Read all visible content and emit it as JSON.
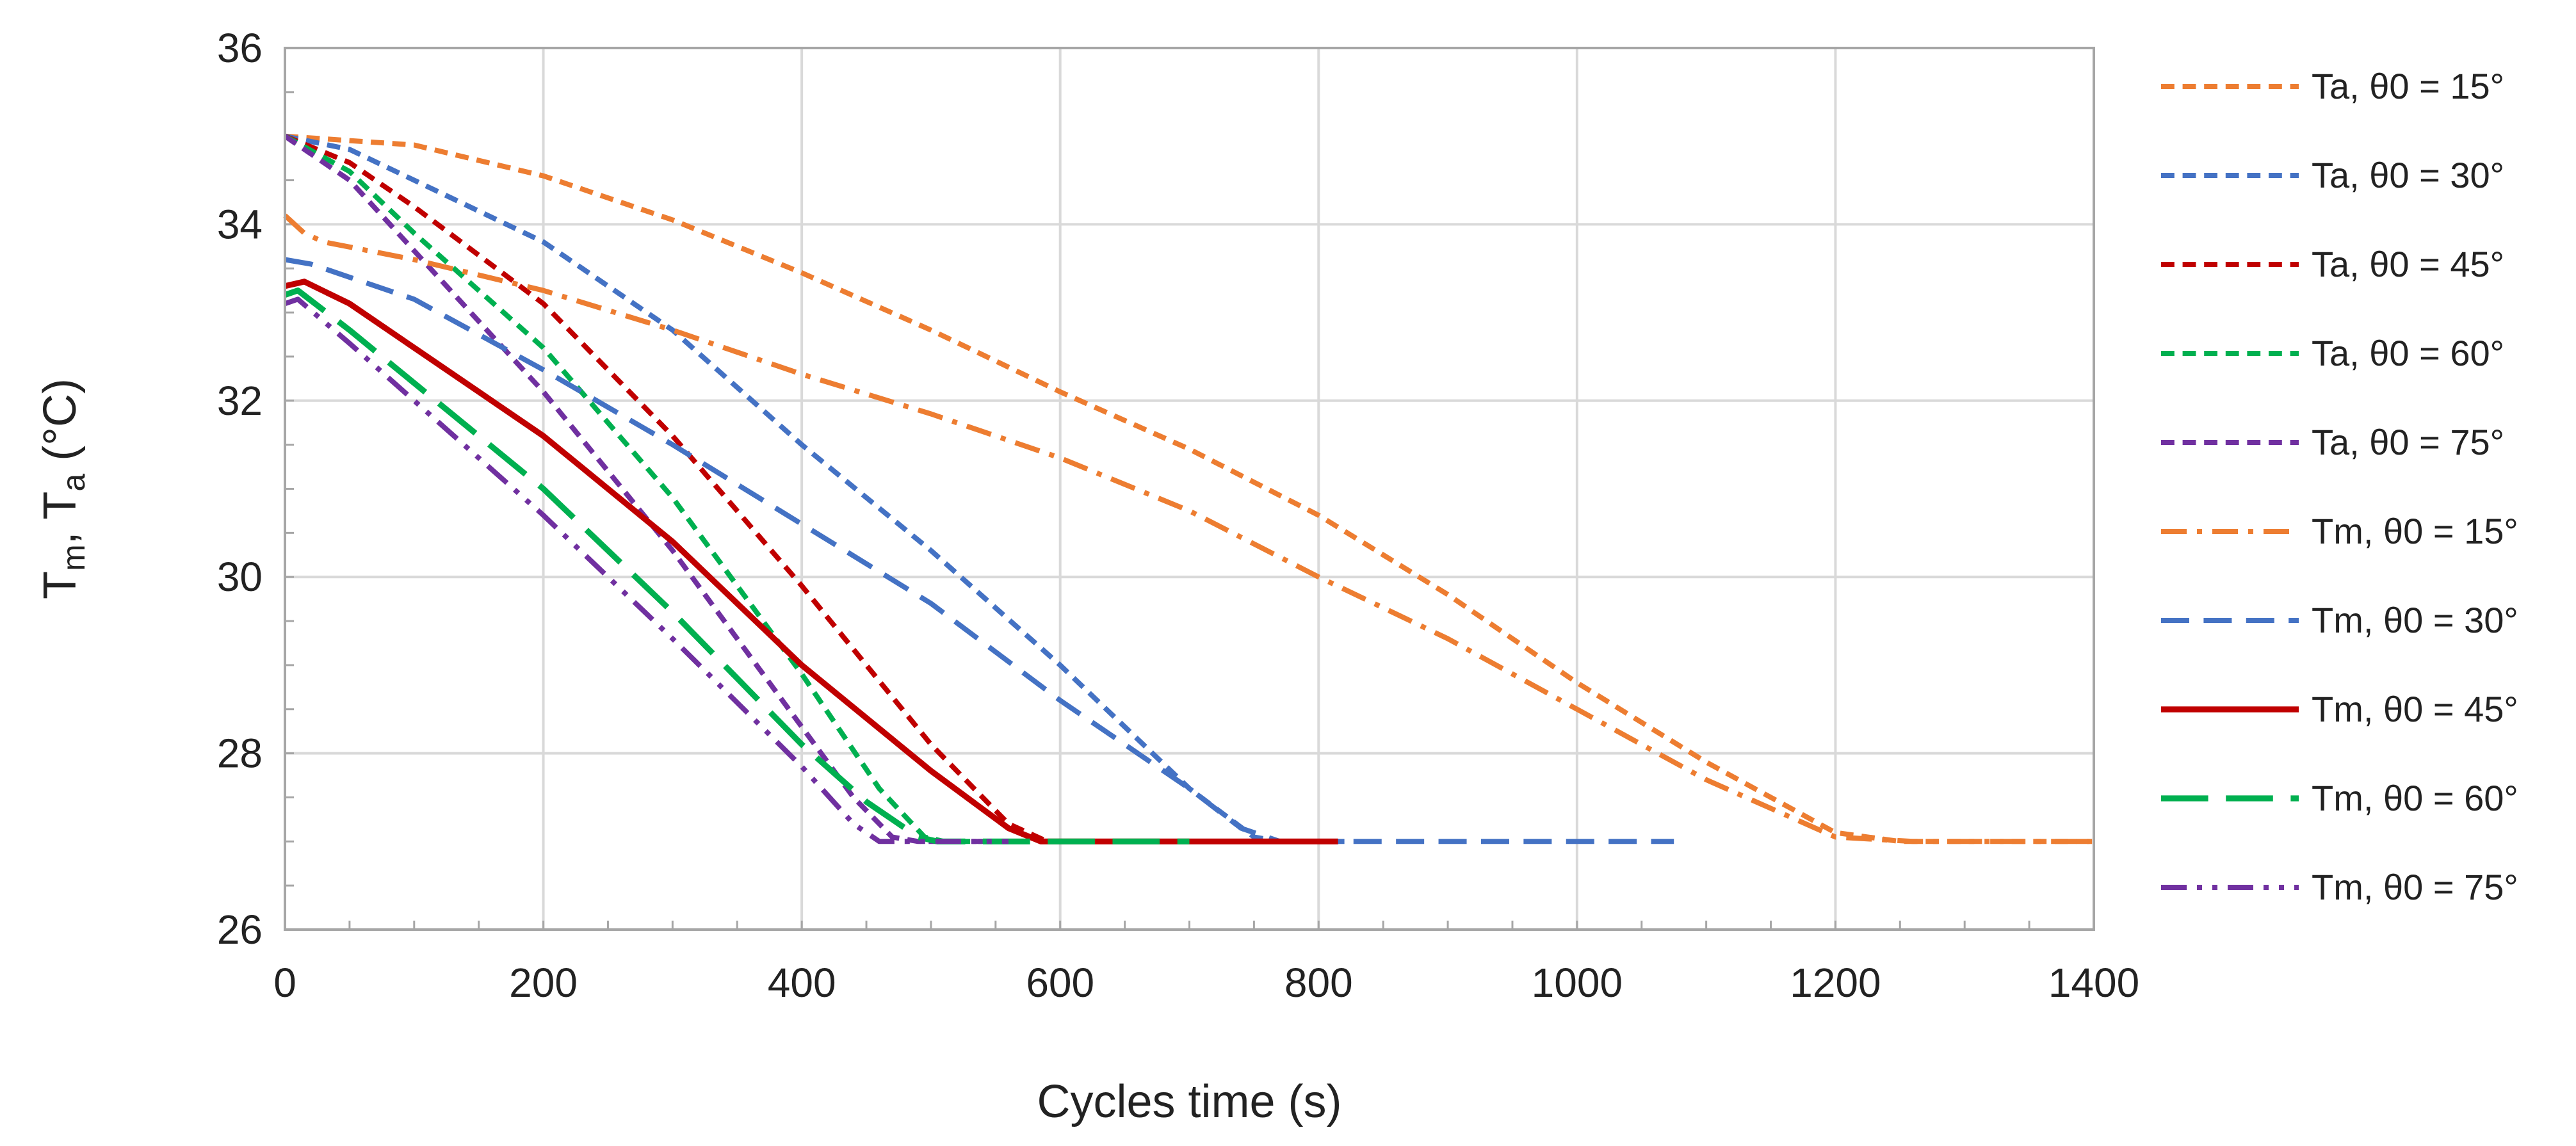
{
  "chart_data": {
    "type": "line",
    "title": "",
    "xlabel": "Cycles time (s)",
    "ylabel": {
      "base1": "T",
      "sub1": "m",
      "sep": ", ",
      "base2": "T",
      "sub2": "a",
      "unit": " (°C)"
    },
    "xlim": [
      0,
      1400
    ],
    "ylim": [
      26,
      36
    ],
    "xticks": [
      0,
      200,
      400,
      600,
      800,
      1000,
      1200,
      1400
    ],
    "yticks": [
      26,
      28,
      30,
      32,
      34,
      36
    ],
    "grid": true,
    "legend_position": "right",
    "series": [
      {
        "name": "Ta, θ0 = 15°",
        "color": "#ED7D31",
        "dash": "short",
        "width": 1,
        "points": [
          [
            0,
            35
          ],
          [
            100,
            34.9
          ],
          [
            200,
            34.55
          ],
          [
            300,
            34.05
          ],
          [
            400,
            33.45
          ],
          [
            500,
            32.8
          ],
          [
            600,
            32.1
          ],
          [
            700,
            31.45
          ],
          [
            800,
            30.7
          ],
          [
            900,
            29.8
          ],
          [
            1000,
            28.8
          ],
          [
            1100,
            27.9
          ],
          [
            1200,
            27.1
          ],
          [
            1250,
            27
          ],
          [
            1400,
            27
          ]
        ]
      },
      {
        "name": "Ta, θ0 = 30°",
        "color": "#4472C4",
        "dash": "short",
        "width": 1,
        "points": [
          [
            0,
            35
          ],
          [
            50,
            34.85
          ],
          [
            100,
            34.5
          ],
          [
            200,
            33.8
          ],
          [
            300,
            32.8
          ],
          [
            400,
            31.5
          ],
          [
            500,
            30.3
          ],
          [
            600,
            29
          ],
          [
            700,
            27.6
          ],
          [
            750,
            27.05
          ],
          [
            770,
            27
          ],
          [
            820,
            27
          ]
        ]
      },
      {
        "name": "Ta, θ0 = 45°",
        "color": "#C00000",
        "dash": "short",
        "width": 1,
        "points": [
          [
            0,
            35
          ],
          [
            50,
            34.7
          ],
          [
            100,
            34.2
          ],
          [
            200,
            33.1
          ],
          [
            300,
            31.6
          ],
          [
            400,
            29.9
          ],
          [
            500,
            28.1
          ],
          [
            560,
            27.2
          ],
          [
            590,
            27
          ],
          [
            640,
            27
          ]
        ]
      },
      {
        "name": "Ta, θ0 = 60°",
        "color": "#00B050",
        "dash": "short",
        "width": 1,
        "points": [
          [
            0,
            35
          ],
          [
            50,
            34.6
          ],
          [
            100,
            33.9
          ],
          [
            200,
            32.6
          ],
          [
            300,
            30.9
          ],
          [
            400,
            28.9
          ],
          [
            460,
            27.6
          ],
          [
            495,
            27.05
          ],
          [
            510,
            27
          ],
          [
            560,
            27
          ]
        ]
      },
      {
        "name": "Ta, θ0 = 75°",
        "color": "#7030A0",
        "dash": "short",
        "width": 1,
        "points": [
          [
            0,
            35
          ],
          [
            50,
            34.5
          ],
          [
            100,
            33.7
          ],
          [
            200,
            32.1
          ],
          [
            300,
            30.3
          ],
          [
            400,
            28.3
          ],
          [
            440,
            27.5
          ],
          [
            470,
            27.05
          ],
          [
            490,
            27
          ],
          [
            540,
            27
          ]
        ]
      },
      {
        "name": "Tm, θ0 = 15°",
        "color": "#ED7D31",
        "dash": "dashdot",
        "width": 1,
        "points": [
          [
            0,
            34.1
          ],
          [
            15,
            33.9
          ],
          [
            30,
            33.8
          ],
          [
            100,
            33.6
          ],
          [
            200,
            33.25
          ],
          [
            300,
            32.8
          ],
          [
            400,
            32.3
          ],
          [
            500,
            31.85
          ],
          [
            600,
            31.35
          ],
          [
            700,
            30.75
          ],
          [
            800,
            30
          ],
          [
            900,
            29.3
          ],
          [
            1000,
            28.5
          ],
          [
            1100,
            27.7
          ],
          [
            1200,
            27.05
          ],
          [
            1260,
            27
          ],
          [
            1400,
            27
          ]
        ]
      },
      {
        "name": "Tm, θ0 = 30°",
        "color": "#4472C4",
        "dash": "long",
        "width": 1,
        "points": [
          [
            0,
            33.6
          ],
          [
            20,
            33.55
          ],
          [
            100,
            33.15
          ],
          [
            200,
            32.35
          ],
          [
            300,
            31.5
          ],
          [
            400,
            30.6
          ],
          [
            500,
            29.7
          ],
          [
            600,
            28.6
          ],
          [
            700,
            27.6
          ],
          [
            740,
            27.15
          ],
          [
            770,
            27
          ],
          [
            1075,
            27
          ]
        ]
      },
      {
        "name": "Tm, θ0 = 45°",
        "color": "#C00000",
        "dash": "solid",
        "width": 1.15,
        "points": [
          [
            0,
            33.3
          ],
          [
            15,
            33.35
          ],
          [
            50,
            33.1
          ],
          [
            100,
            32.6
          ],
          [
            200,
            31.6
          ],
          [
            300,
            30.4
          ],
          [
            400,
            29
          ],
          [
            500,
            27.8
          ],
          [
            560,
            27.15
          ],
          [
            585,
            27
          ],
          [
            815,
            27
          ]
        ]
      },
      {
        "name": "Tm, θ0 = 60°",
        "color": "#00B050",
        "dash": "xlong",
        "width": 1.15,
        "points": [
          [
            0,
            33.2
          ],
          [
            10,
            33.25
          ],
          [
            50,
            32.8
          ],
          [
            100,
            32.2
          ],
          [
            200,
            31
          ],
          [
            300,
            29.6
          ],
          [
            400,
            28.1
          ],
          [
            450,
            27.45
          ],
          [
            490,
            27.05
          ],
          [
            505,
            27
          ],
          [
            700,
            27
          ]
        ]
      },
      {
        "name": "Tm, θ0 = 75°",
        "color": "#7030A0",
        "dash": "dashdotdot",
        "width": 1,
        "points": [
          [
            0,
            33.1
          ],
          [
            10,
            33.15
          ],
          [
            50,
            32.65
          ],
          [
            100,
            32
          ],
          [
            200,
            30.7
          ],
          [
            300,
            29.3
          ],
          [
            400,
            27.85
          ],
          [
            440,
            27.2
          ],
          [
            460,
            27
          ],
          [
            560,
            27
          ]
        ]
      }
    ]
  }
}
